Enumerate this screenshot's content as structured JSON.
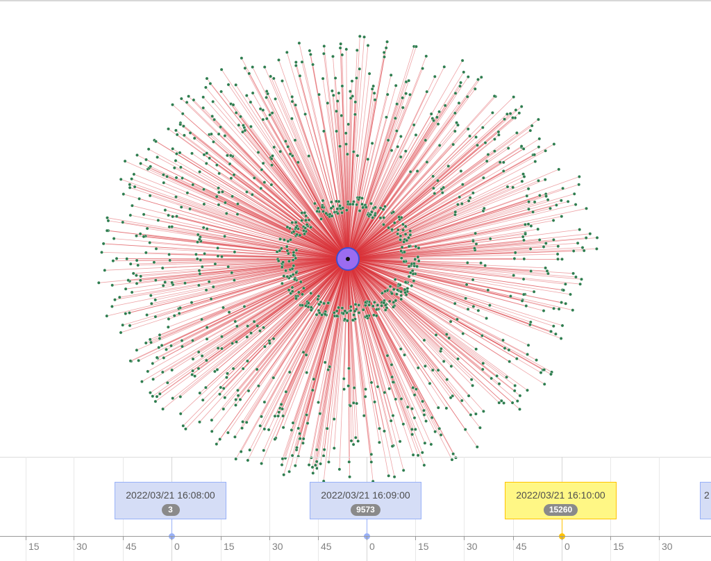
{
  "graph": {
    "node_color": "#2e7d4f",
    "edge_color": "#d9323a",
    "center_node_color": "#9b6cf0",
    "center_node_ring": "#3a4fd6"
  },
  "timeline": {
    "tick_labels": [
      "15",
      "30",
      "45",
      "0",
      "15",
      "30",
      "45",
      "0",
      "15",
      "30",
      "45",
      "0",
      "15",
      "30"
    ],
    "items": [
      {
        "date": "2022/03/21 16:08:00",
        "count": "3",
        "selected": false
      },
      {
        "date": "2022/03/21 16:09:00",
        "count": "9573",
        "selected": false
      },
      {
        "date": "2022/03/21 16:10:00",
        "count": "15260",
        "selected": true
      },
      {
        "date": "2",
        "count": "",
        "selected": false
      }
    ],
    "colors": {
      "item_bg": "#d5ddf6",
      "item_border": "#97b0f8",
      "selected_bg": "#fff785",
      "selected_border": "#ffc200"
    }
  }
}
